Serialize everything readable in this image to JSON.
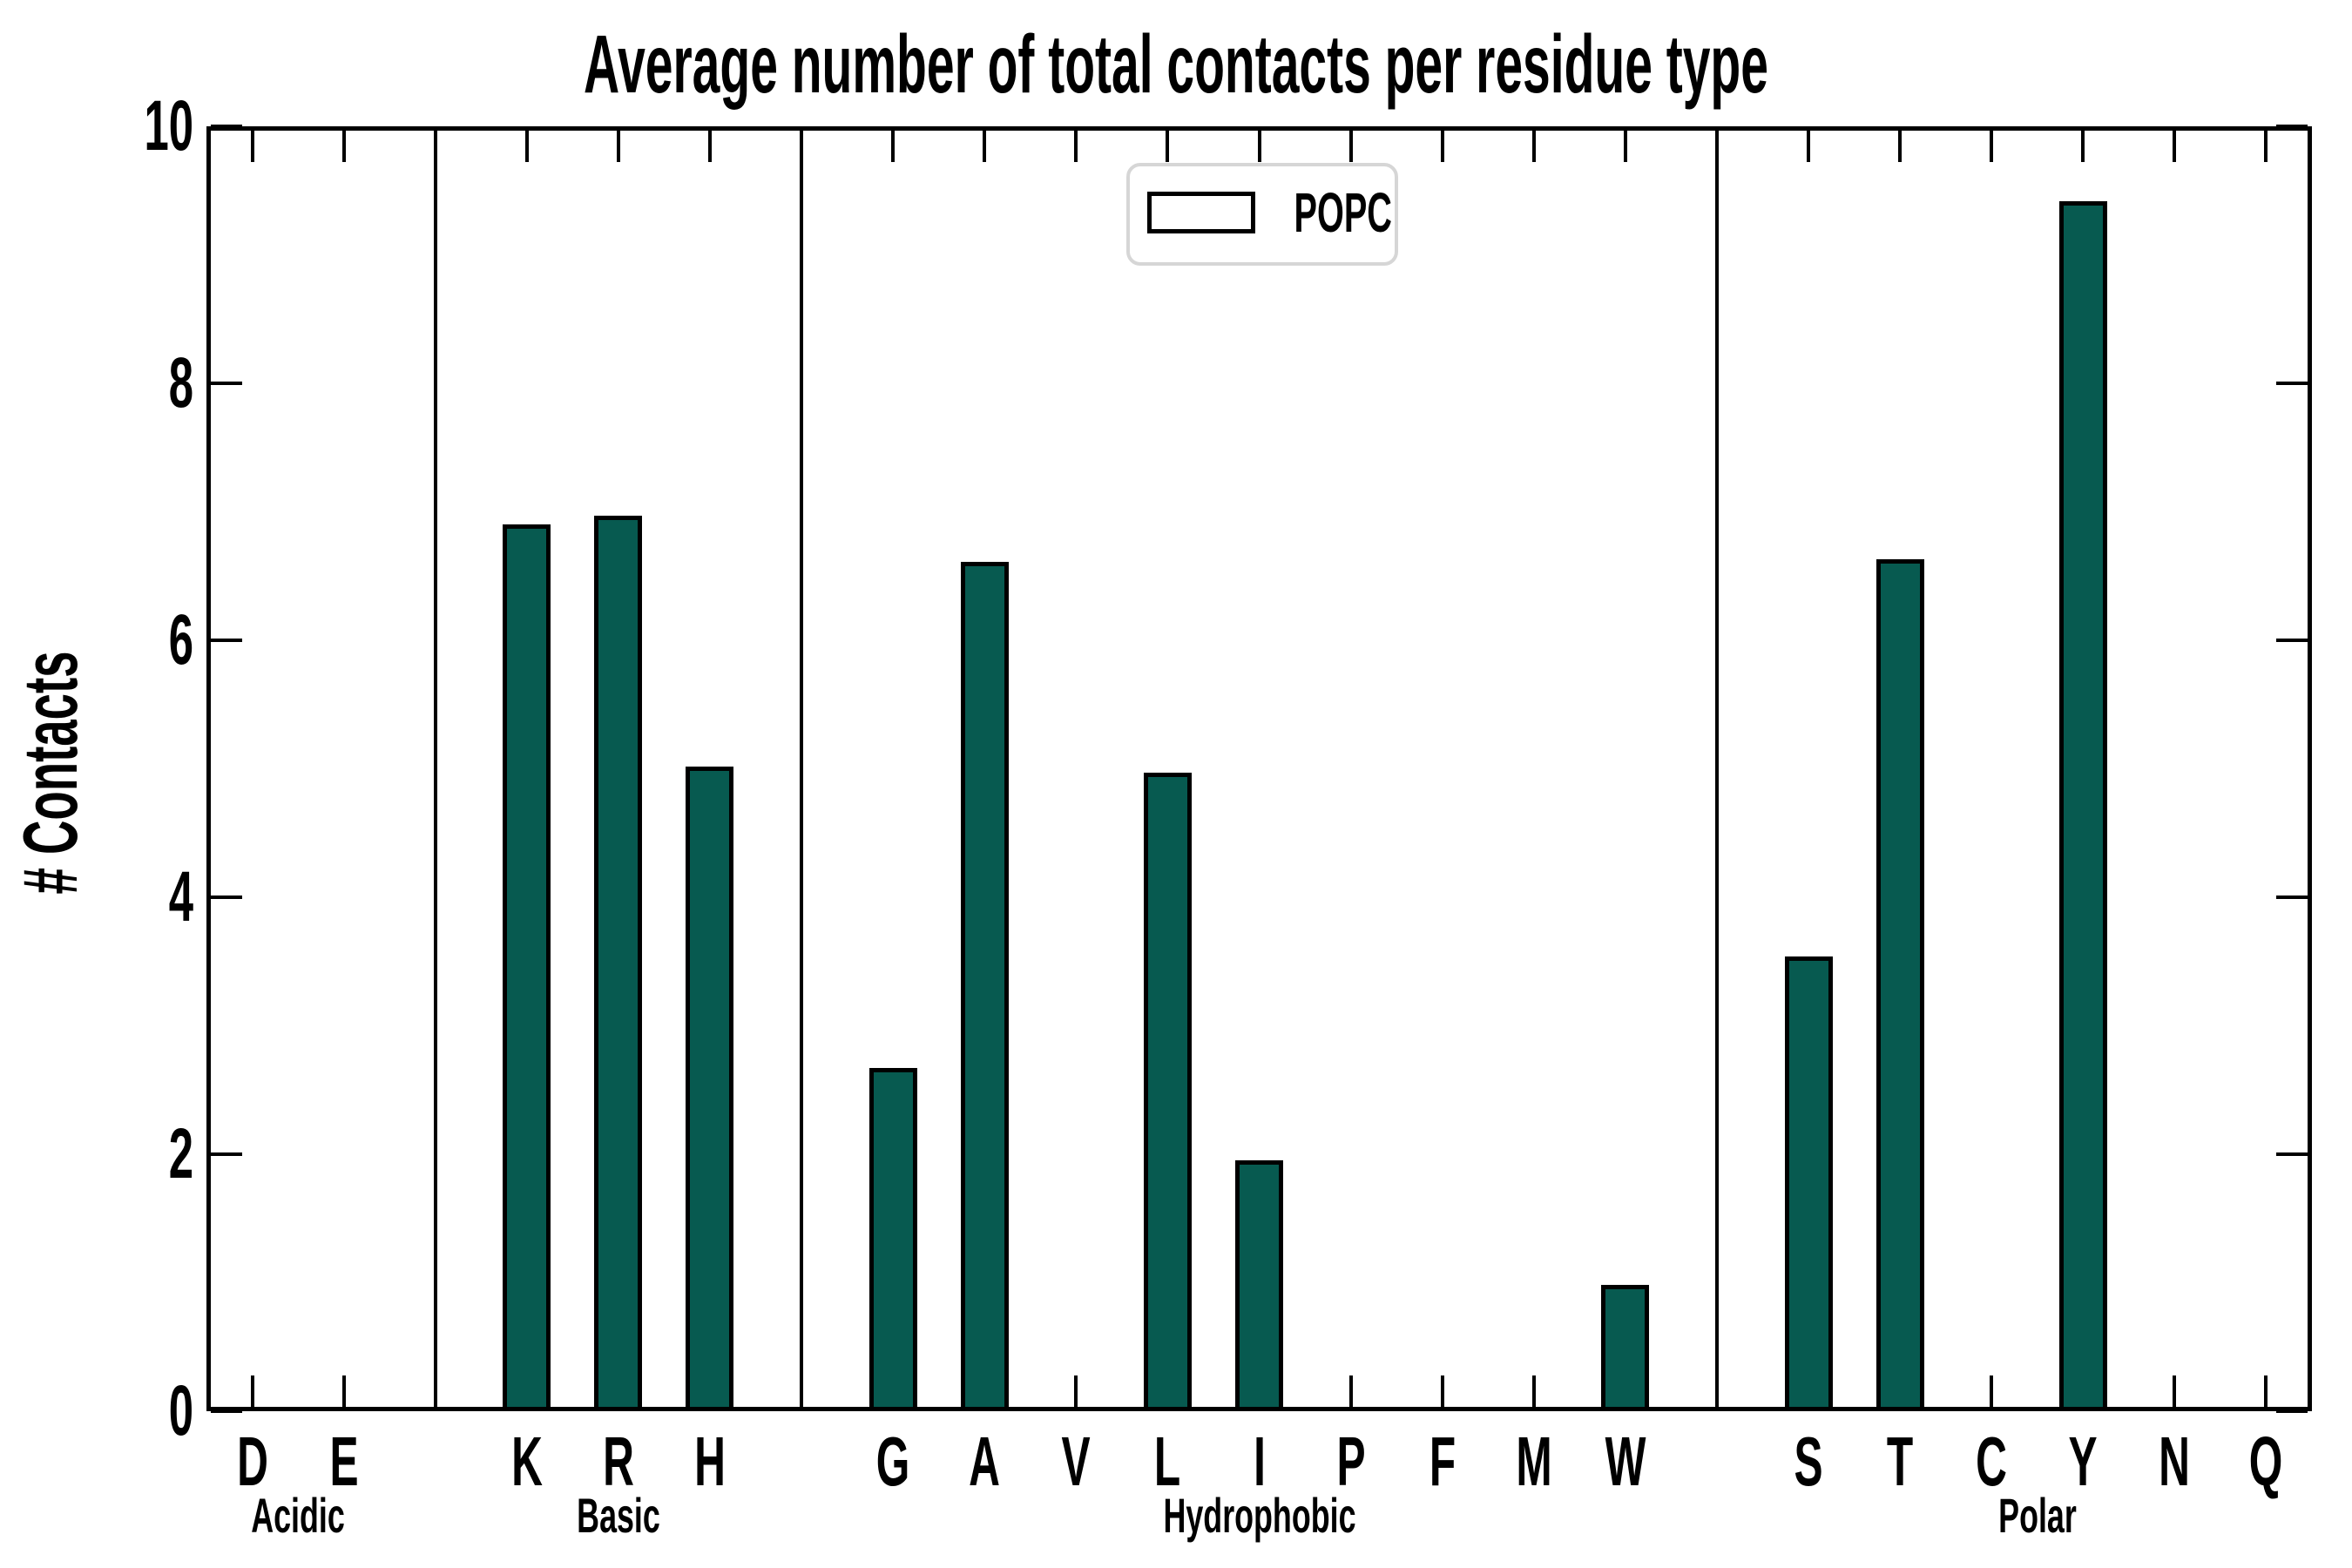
{
  "chart_data": {
    "type": "bar",
    "title": "Average number of total contacts per residue type",
    "xlabel": "",
    "ylabel": "# Contacts",
    "ylim": [
      0,
      10
    ],
    "yticks": [
      0,
      2,
      4,
      6,
      8,
      10
    ],
    "grid": false,
    "legend": {
      "label": "POPC",
      "position": "top-center"
    },
    "bar_color": "#075A50",
    "bar_edge_color": "#000000",
    "categories": [
      "D",
      "E",
      "K",
      "R",
      "H",
      "G",
      "A",
      "V",
      "L",
      "I",
      "P",
      "F",
      "M",
      "W",
      "S",
      "T",
      "C",
      "Y",
      "N",
      "Q"
    ],
    "values": [
      0.02,
      0.02,
      6.9,
      6.97,
      5.02,
      2.67,
      6.61,
      0.02,
      4.97,
      1.95,
      0.02,
      0.02,
      0.02,
      0.98,
      3.54,
      6.63,
      0.02,
      9.42,
      0.02,
      0.02
    ],
    "groups": [
      {
        "label": "Acidic",
        "bars": [
          {
            "label": "D",
            "value": 0.02
          },
          {
            "label": "E",
            "value": 0.02
          }
        ]
      },
      {
        "label": "Basic",
        "bars": [
          {
            "label": "K",
            "value": 6.9
          },
          {
            "label": "R",
            "value": 6.97
          },
          {
            "label": "H",
            "value": 5.02
          }
        ]
      },
      {
        "label": "Hydrophobic",
        "bars": [
          {
            "label": "G",
            "value": 2.67
          },
          {
            "label": "A",
            "value": 6.61
          },
          {
            "label": "V",
            "value": 0.02
          },
          {
            "label": "L",
            "value": 4.97
          },
          {
            "label": "I",
            "value": 1.95
          },
          {
            "label": "P",
            "value": 0.02
          },
          {
            "label": "F",
            "value": 0.02
          },
          {
            "label": "M",
            "value": 0.02
          },
          {
            "label": "W",
            "value": 0.98
          }
        ]
      },
      {
        "label": "Polar",
        "bars": [
          {
            "label": "S",
            "value": 3.54
          },
          {
            "label": "T",
            "value": 6.63
          },
          {
            "label": "C",
            "value": 0.02
          },
          {
            "label": "Y",
            "value": 9.42
          },
          {
            "label": "N",
            "value": 0.02
          },
          {
            "label": "Q",
            "value": 0.02
          }
        ]
      }
    ]
  }
}
